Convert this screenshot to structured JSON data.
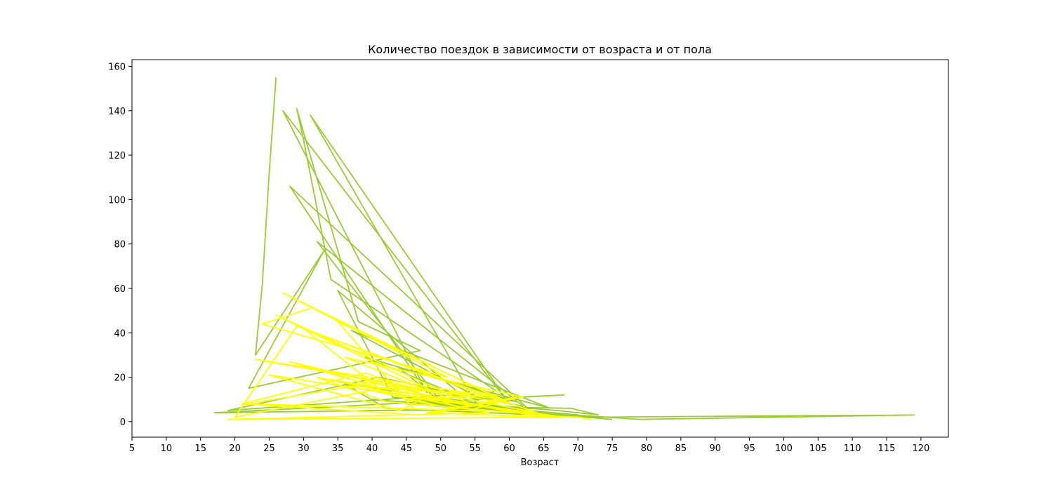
{
  "chart_data": {
    "type": "line",
    "title": "Количество поездок в зависимости от возраста и от пола",
    "xlabel": "Возраст",
    "ylabel": "",
    "xlim": [
      5,
      124
    ],
    "ylim": [
      -7,
      163
    ],
    "xticks": [
      5,
      10,
      15,
      20,
      25,
      30,
      35,
      40,
      45,
      50,
      55,
      60,
      65,
      70,
      75,
      80,
      85,
      90,
      95,
      100,
      105,
      110,
      115,
      120
    ],
    "yticks": [
      0,
      20,
      40,
      60,
      80,
      100,
      120,
      140,
      160
    ],
    "grid": false,
    "legend": "none",
    "series": [
      {
        "color": "#9acd32",
        "x": [
          26,
          25,
          24,
          23,
          33,
          22,
          47,
          38,
          29,
          30,
          34,
          58,
          55,
          31,
          60,
          27,
          48,
          28,
          63,
          43,
          35,
          53,
          62,
          32,
          50,
          44,
          66,
          37,
          56,
          41,
          19,
          51,
          57,
          61,
          39,
          54,
          68,
          17,
          64,
          52,
          70,
          46,
          59,
          67,
          73,
          69,
          49,
          71,
          119,
          79,
          45,
          65,
          36,
          42,
          72,
          40,
          75
        ],
        "y": [
          155,
          112,
          62,
          30,
          77,
          15,
          32,
          45,
          141,
          127,
          64,
          14,
          9,
          138,
          8,
          140,
          13,
          106,
          5,
          11,
          59,
          12,
          7,
          81,
          9,
          24,
          6,
          41,
          10,
          20,
          5,
          12,
          11,
          9,
          29,
          10,
          12,
          4,
          6,
          8,
          3,
          9,
          7,
          5,
          3,
          6,
          7,
          2,
          3,
          1,
          8,
          4,
          17,
          6,
          2,
          10,
          1
        ]
      },
      {
        "color": "#ffff00",
        "x": [
          31,
          24,
          51,
          27,
          60,
          23,
          56,
          30,
          41,
          33,
          64,
          29,
          20,
          43,
          46,
          35,
          59,
          38,
          28,
          52,
          26,
          55,
          25,
          44,
          49,
          36,
          62,
          47,
          21,
          39,
          53,
          65,
          42,
          32,
          57,
          19,
          68,
          40,
          50,
          45,
          58,
          37,
          22,
          54,
          61,
          48,
          66,
          34,
          63,
          70,
          72
        ],
        "y": [
          51,
          44,
          20,
          58,
          8,
          28,
          12,
          42,
          15,
          23,
          4,
          43,
          2,
          16,
          6,
          45,
          10,
          18,
          27,
          9,
          48,
          7,
          21,
          5,
          13,
          29,
          11,
          3,
          8,
          22,
          6,
          3,
          9,
          20,
          4,
          1,
          2,
          14,
          7,
          10,
          12,
          16,
          8,
          5,
          11,
          4,
          2,
          19,
          3,
          2,
          1
        ]
      }
    ]
  }
}
